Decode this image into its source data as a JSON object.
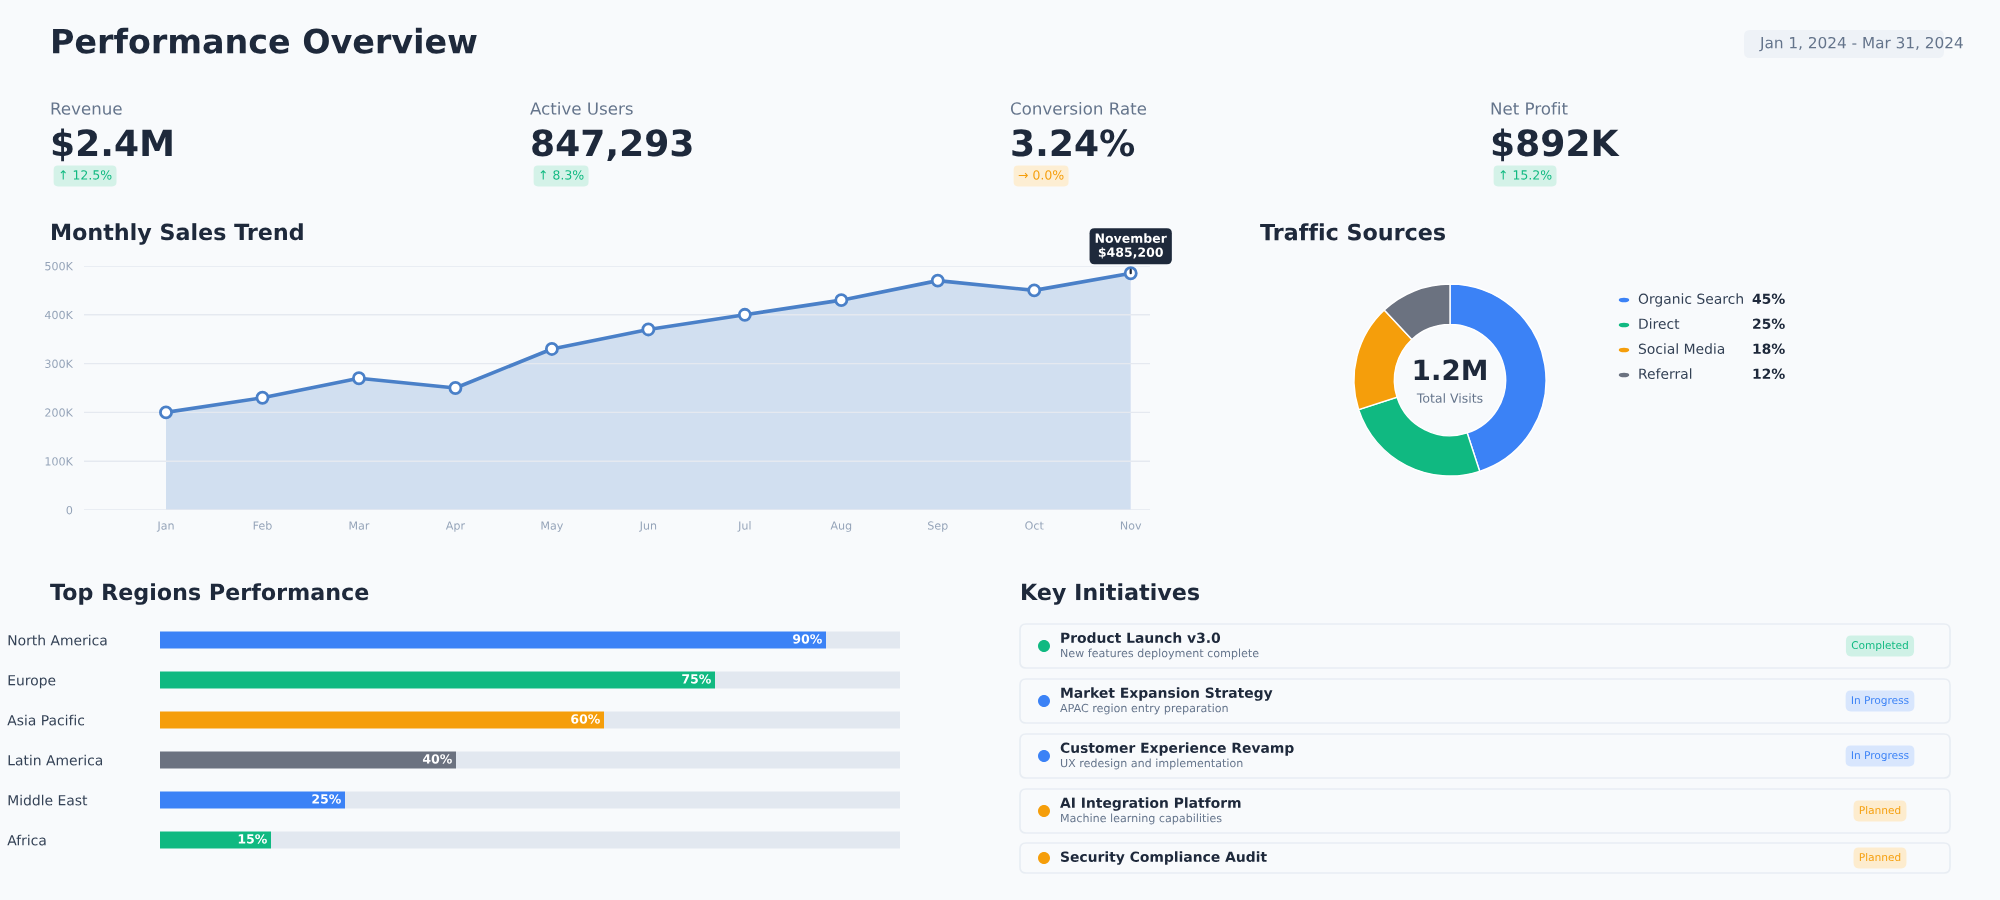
{
  "chart_data": [
    {
      "type": "other",
      "title": "Performance Overview",
      "subtitle": "Jan 1, 2024 - Mar 31, 2024",
      "categories": [
        "Revenue",
        "Active Users",
        "Conversion Rate",
        "Net Profit"
      ],
      "value_labels": [
        "$2.4M",
        "847,293",
        "3.24%",
        "$892K"
      ],
      "annotations": [
        "↑ 12.5%",
        "↑ 8.3%",
        "→ 0.0%",
        "↑ 15.2%"
      ],
      "colors": [
        "#10b981",
        "#10b981",
        "#f59e0b",
        "#10b981"
      ]
    },
    {
      "type": "area",
      "title": "Monthly Sales Trend",
      "categories": [
        "Jan",
        "Feb",
        "Mar",
        "Apr",
        "May",
        "Jun",
        "Jul",
        "Aug",
        "Sep",
        "Oct",
        "Nov"
      ],
      "series": [
        {
          "color": "#4a80c8",
          "values": [
            200000,
            230000,
            270000,
            250000,
            330000,
            370000,
            400000,
            430000,
            470000,
            450000,
            485200
          ]
        }
      ],
      "ylim": [
        0,
        500000
      ],
      "yticks": [
        0,
        {
          "value": 100000,
          "label": "100K"
        },
        {
          "value": 200000,
          "label": "200K"
        },
        {
          "value": 300000,
          "label": "300K"
        },
        {
          "value": 400000,
          "label": "400K"
        },
        {
          "value": 500000,
          "label": "500K"
        }
      ],
      "grid": "y",
      "marker": "circle",
      "annotations": [
        {
          "text": "November\n$485,200",
          "x": "Nov",
          "y": 485200
        }
      ]
    },
    {
      "type": "donut",
      "title": "Traffic Sources",
      "categories": [
        "Organic Search",
        "Direct",
        "Social Media",
        "Referral"
      ],
      "values": [
        45,
        25,
        18,
        12
      ],
      "value_labels": [
        "45%",
        "25%",
        "18%",
        "12%"
      ],
      "colors": [
        "#3b82f6",
        "#10b981",
        "#f59e0b",
        "#6b7280"
      ],
      "legend": "right",
      "annotations": [
        "1.2M",
        "Total Visits"
      ]
    },
    {
      "type": "bar",
      "title": "Top Regions Performance",
      "orientation": "horizontal",
      "stacked": true,
      "categories": [
        "North America",
        "Europe",
        "Asia Pacific",
        "Latin America",
        "Middle East",
        "Africa"
      ],
      "series": [
        {
          "colors": [
            "#3b82f6",
            "#10b981",
            "#f59e0b",
            "#6b7280",
            "#3b82f6",
            "#10b981"
          ],
          "values": [
            90,
            75,
            60,
            40,
            25,
            15
          ],
          "value_labels": [
            "90%",
            "75%",
            "60%",
            "40%",
            "25%",
            "15%"
          ]
        },
        {
          "color": "#e2e8f0",
          "values": [
            10,
            25,
            40,
            60,
            75,
            85
          ]
        }
      ],
      "xlim": [
        0,
        100
      ],
      "tick_labels": "y"
    },
    {
      "type": "other",
      "title": "Key Initiatives",
      "categories": [
        "Product Launch v3.0",
        "Market Expansion Strategy",
        "Customer Experience Revamp",
        "AI Integration Platform",
        "Security Compliance Audit"
      ],
      "colors": [
        "#10b981",
        "#3b82f6",
        "#3b82f6",
        "#f59e0b",
        "#f59e0b"
      ],
      "annotations": [
        "New features deployment complete",
        "APAC region entry preparation",
        "UX redesign and implementation",
        "Machine learning capabilities",
        "Completed",
        "In Progress",
        "In Progress",
        "Planned",
        "Planned"
      ]
    }
  ]
}
